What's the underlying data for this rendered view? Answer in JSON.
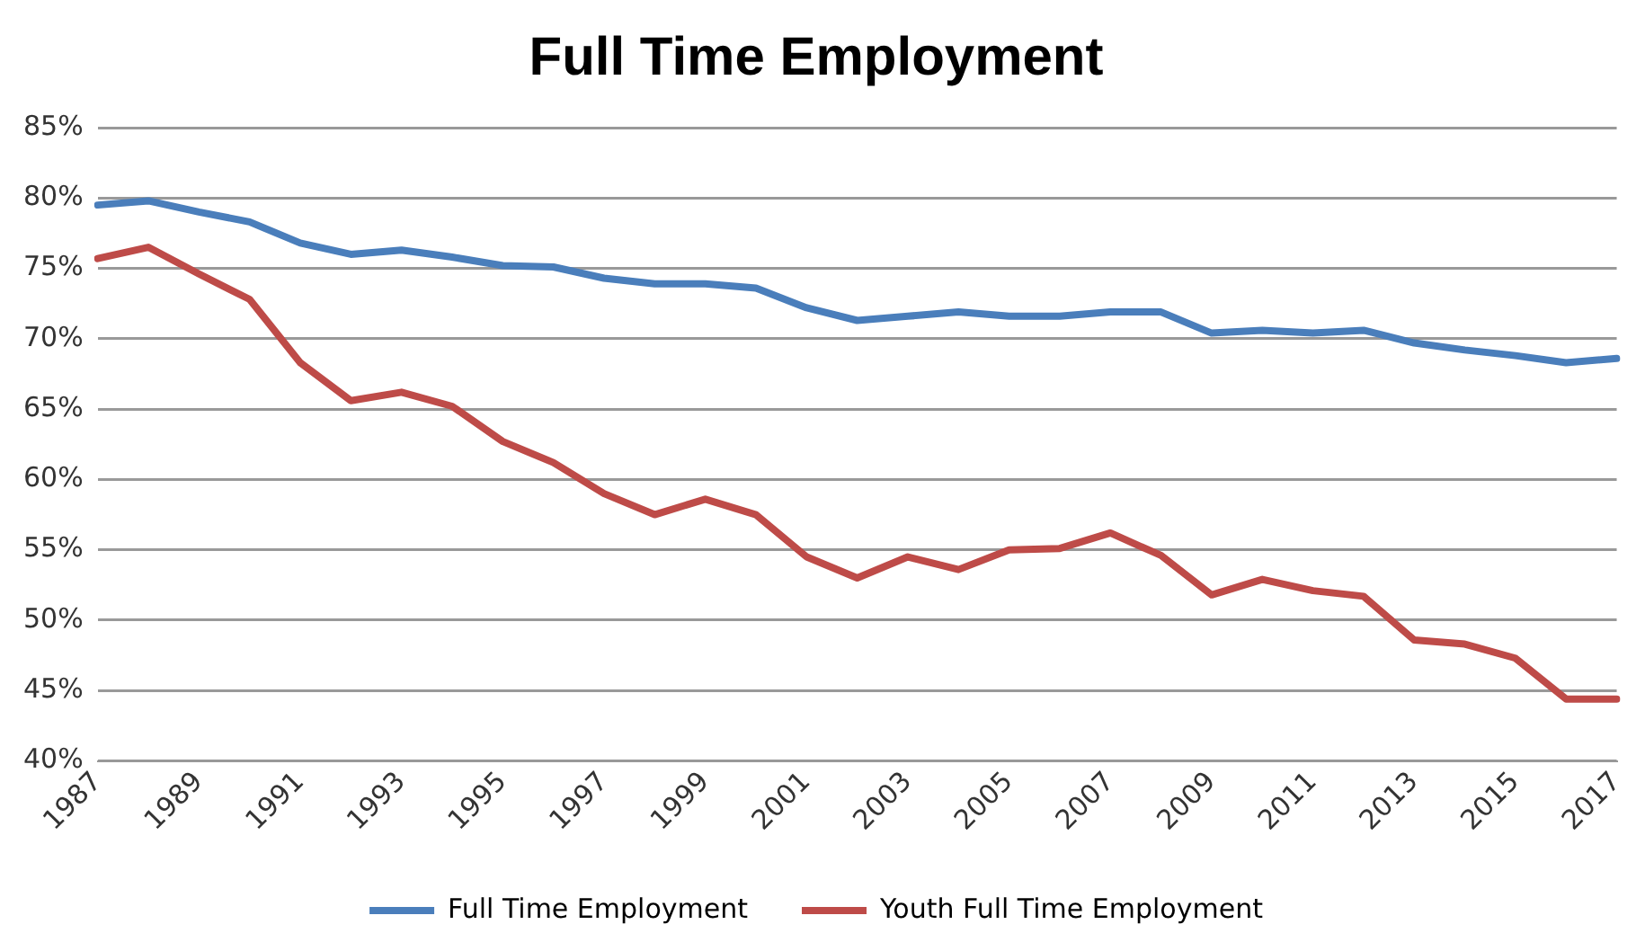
{
  "chart_data": {
    "type": "line",
    "title": "Full Time Employment",
    "categories": [
      "1987",
      null,
      "1989",
      null,
      "1991",
      null,
      "1993",
      null,
      "1995",
      null,
      "1997",
      null,
      "1999",
      null,
      "2001",
      null,
      "2003",
      null,
      "2005",
      null,
      "2007",
      null,
      "2009",
      null,
      "2011",
      null,
      "2013",
      null,
      "2015",
      null,
      "2017"
    ],
    "series": [
      {
        "name": "Full Time Employment",
        "color": "#4a7ebb",
        "values": [
          79.5,
          79.8,
          79,
          78.3,
          76.8,
          76,
          76.3,
          75.8,
          75.2,
          75.1,
          74.3,
          73.9,
          73.9,
          73.6,
          72.2,
          71.3,
          71.6,
          71.9,
          71.6,
          71.6,
          71.9,
          71.9,
          70.4,
          70.6,
          70.4,
          70.6,
          69.7,
          69.2,
          68.8,
          68.3,
          68.6
        ]
      },
      {
        "name": "Youth Full Time Employment",
        "color": "#be4b48",
        "values": [
          75.7,
          76.5,
          74.6,
          72.8,
          68.3,
          65.6,
          66.2,
          65.2,
          62.7,
          61.2,
          59,
          57.5,
          58.6,
          57.5,
          54.5,
          53,
          54.5,
          53.6,
          55,
          55.1,
          56.2,
          54.6,
          51.8,
          52.9,
          52.1,
          51.7,
          48.6,
          48.3,
          47.3,
          44.4,
          44.4
        ]
      }
    ],
    "ylim": [
      40,
      85
    ],
    "yticks": [
      {
        "value": 40,
        "label": "40%"
      },
      {
        "value": 45,
        "label": "45%"
      },
      {
        "value": 50,
        "label": "50%"
      },
      {
        "value": 55,
        "label": "55%"
      },
      {
        "value": 60,
        "label": "60%"
      },
      {
        "value": 65,
        "label": "65%"
      },
      {
        "value": 70,
        "label": "70%"
      },
      {
        "value": 75,
        "label": "75%"
      },
      {
        "value": 80,
        "label": "80%"
      },
      {
        "value": 85,
        "label": "85%"
      }
    ],
    "grid": "y",
    "legend": "bottom",
    "marker": "none",
    "line_style": "solid"
  }
}
